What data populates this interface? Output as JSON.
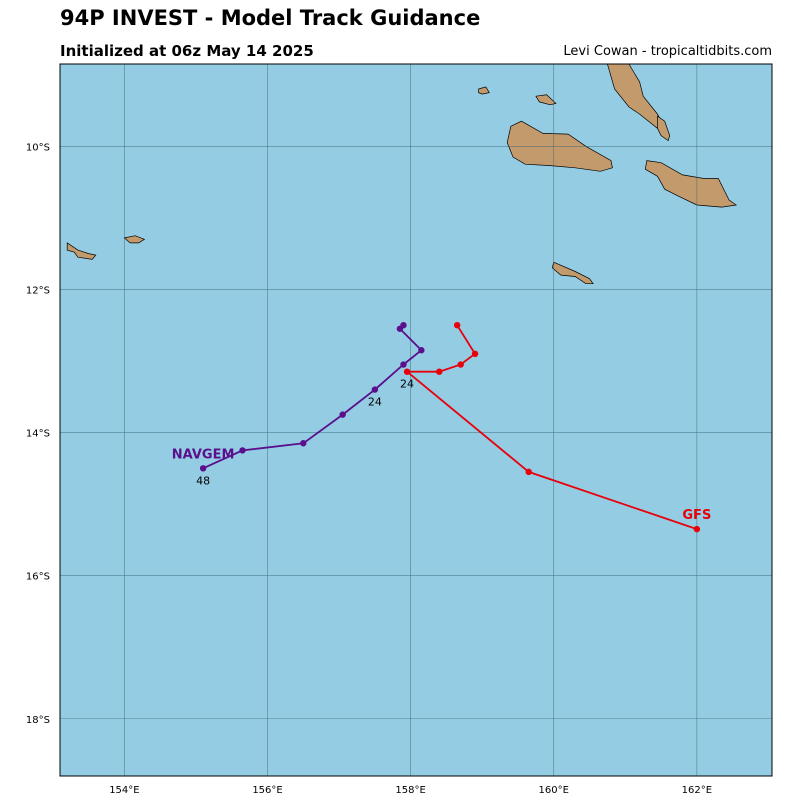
{
  "header": {
    "title": "94P INVEST - Model Track Guidance",
    "subtitle": "Initialized at 06z May 14 2025",
    "credit": "Levi Cowan - tropicaltidbits.com"
  },
  "colors": {
    "ocean": "#94cde3",
    "land": "#c39a6b",
    "grid": "#3d6b78",
    "NAVGEM": "#5a0f8c",
    "GFS": "#e8000b"
  },
  "map_data": {
    "lon_range": [
      153.1,
      163.05
    ],
    "lat_range": [
      -18.8,
      -8.85
    ],
    "lon_ticks": [
      {
        "value": 154,
        "label": "154°E"
      },
      {
        "value": 156,
        "label": "156°E"
      },
      {
        "value": 158,
        "label": "158°E"
      },
      {
        "value": 160,
        "label": "160°E"
      },
      {
        "value": 162,
        "label": "162°E"
      }
    ],
    "lat_ticks": [
      {
        "value": -10,
        "label": "10°S"
      },
      {
        "value": -12,
        "label": "12°S"
      },
      {
        "value": -14,
        "label": "14°S"
      },
      {
        "value": -16,
        "label": "16°S"
      },
      {
        "value": -18,
        "label": "18°S"
      }
    ],
    "models": [
      {
        "name": "NAVGEM",
        "points": [
          [
            157.9,
            -12.5
          ],
          [
            157.85,
            -12.55
          ],
          [
            158.15,
            -12.85
          ],
          [
            157.9,
            -13.05
          ],
          [
            157.5,
            -13.4
          ],
          [
            157.05,
            -13.75
          ],
          [
            156.5,
            -14.15
          ],
          [
            155.65,
            -14.25
          ],
          [
            155.1,
            -14.5
          ]
        ],
        "hour_labels": [
          {
            "text": "24",
            "lon": 157.5,
            "lat": -13.4
          },
          {
            "text": "48",
            "lon": 155.1,
            "lat": -14.5
          }
        ]
      },
      {
        "name": "GFS",
        "points": [
          [
            158.65,
            -12.5
          ],
          [
            158.9,
            -12.9
          ],
          [
            158.7,
            -13.05
          ],
          [
            158.4,
            -13.15
          ],
          [
            157.95,
            -13.15
          ],
          [
            159.65,
            -14.55
          ],
          [
            162.0,
            -15.35
          ]
        ],
        "hour_labels": [
          {
            "text": "24",
            "lon": 157.95,
            "lat": -13.15
          }
        ]
      }
    ],
    "islands": [
      {
        "name": "Rennell",
        "coords": [
          [
            153.2,
            -11.35
          ],
          [
            153.35,
            -11.45
          ],
          [
            153.5,
            -11.5
          ],
          [
            153.6,
            -11.52
          ],
          [
            153.55,
            -11.58
          ],
          [
            153.35,
            -11.55
          ],
          [
            153.3,
            -11.48
          ],
          [
            153.2,
            -11.45
          ]
        ]
      },
      {
        "name": "Bellona",
        "coords": [
          [
            154.0,
            -11.28
          ],
          [
            154.15,
            -11.25
          ],
          [
            154.28,
            -11.3
          ],
          [
            154.2,
            -11.35
          ],
          [
            154.08,
            -11.35
          ]
        ]
      },
      {
        "name": "Guadalcanal",
        "coords": [
          [
            159.4,
            -9.72
          ],
          [
            159.55,
            -9.65
          ],
          [
            159.85,
            -9.82
          ],
          [
            160.2,
            -9.83
          ],
          [
            160.45,
            -10.0
          ],
          [
            160.8,
            -10.2
          ],
          [
            160.82,
            -10.3
          ],
          [
            160.65,
            -10.35
          ],
          [
            160.3,
            -10.3
          ],
          [
            159.95,
            -10.27
          ],
          [
            159.6,
            -10.25
          ],
          [
            159.43,
            -10.15
          ],
          [
            159.35,
            -9.95
          ]
        ]
      },
      {
        "name": "Makira",
        "coords": [
          [
            161.3,
            -10.2
          ],
          [
            161.5,
            -10.23
          ],
          [
            161.8,
            -10.4
          ],
          [
            162.1,
            -10.45
          ],
          [
            162.3,
            -10.45
          ],
          [
            162.45,
            -10.75
          ],
          [
            162.55,
            -10.82
          ],
          [
            162.35,
            -10.85
          ],
          [
            162.0,
            -10.82
          ],
          [
            161.75,
            -10.7
          ],
          [
            161.55,
            -10.6
          ],
          [
            161.45,
            -10.42
          ],
          [
            161.28,
            -10.32
          ]
        ]
      },
      {
        "name": "Malaita",
        "coords": [
          [
            160.75,
            -8.85
          ],
          [
            161.05,
            -8.85
          ],
          [
            161.2,
            -9.1
          ],
          [
            161.25,
            -9.3
          ],
          [
            161.45,
            -9.55
          ],
          [
            161.55,
            -9.75
          ],
          [
            161.45,
            -9.75
          ],
          [
            161.2,
            -9.55
          ],
          [
            161.05,
            -9.45
          ],
          [
            160.85,
            -9.2
          ]
        ]
      },
      {
        "name": "Maramasike",
        "coords": [
          [
            161.45,
            -9.58
          ],
          [
            161.55,
            -9.65
          ],
          [
            161.62,
            -9.85
          ],
          [
            161.6,
            -9.92
          ],
          [
            161.5,
            -9.85
          ],
          [
            161.45,
            -9.75
          ]
        ]
      },
      {
        "name": "Savo",
        "coords": [
          [
            159.75,
            -9.3
          ],
          [
            159.9,
            -9.28
          ],
          [
            160.03,
            -9.4
          ],
          [
            159.95,
            -9.42
          ],
          [
            159.8,
            -9.38
          ]
        ]
      },
      {
        "name": "Russell",
        "coords": [
          [
            158.95,
            -9.2
          ],
          [
            159.05,
            -9.17
          ],
          [
            159.1,
            -9.25
          ],
          [
            159.0,
            -9.27
          ],
          [
            158.95,
            -9.25
          ]
        ]
      },
      {
        "name": "Rennell Island East",
        "coords": [
          [
            160.0,
            -11.62
          ],
          [
            160.3,
            -11.75
          ],
          [
            160.5,
            -11.85
          ],
          [
            160.55,
            -11.92
          ],
          [
            160.45,
            -11.92
          ],
          [
            160.3,
            -11.82
          ],
          [
            160.1,
            -11.8
          ],
          [
            159.98,
            -11.7
          ]
        ]
      }
    ]
  }
}
